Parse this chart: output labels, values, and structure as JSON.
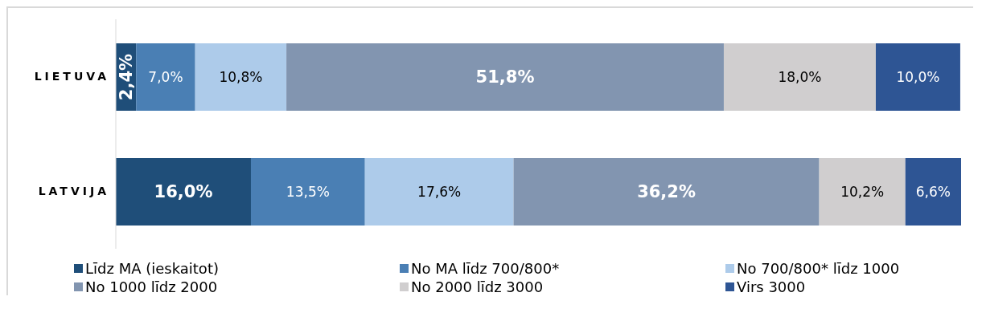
{
  "chart_data": {
    "type": "bar",
    "orientation": "horizontal",
    "stacked": true,
    "legend": "bottom",
    "categories": [
      "LIETUVA",
      "LATVIJA"
    ],
    "series": [
      {
        "name": "Līdz MA (ieskaitot)",
        "color": "#1f4e79",
        "values": [
          2.4,
          16.0
        ],
        "value_labels": [
          "2,4%",
          "16,0%"
        ]
      },
      {
        "name": "No MA līdz 700/800*",
        "color": "#4a7fb4",
        "values": [
          7.0,
          13.5
        ],
        "value_labels": [
          "7,0%",
          "13,5%"
        ]
      },
      {
        "name": "No 700/800* līdz 1000",
        "color": "#adcbea",
        "values": [
          10.8,
          17.6
        ],
        "value_labels": [
          "10,8%",
          "17,6%"
        ]
      },
      {
        "name": "No 1000 līdz 2000",
        "color": "#8295b0",
        "values": [
          51.8,
          36.2
        ],
        "value_labels": [
          "51,8%",
          "36,2%"
        ]
      },
      {
        "name": "No 2000 līdz 3000",
        "color": "#d0cecf",
        "values": [
          18.0,
          10.2
        ],
        "value_labels": [
          "18,0%",
          "10,2%"
        ]
      },
      {
        "name": "Virs 3000",
        "color": "#2e5594",
        "values": [
          10.0,
          6.6
        ],
        "value_labels": [
          "10,0%",
          "6,6%"
        ]
      }
    ]
  }
}
